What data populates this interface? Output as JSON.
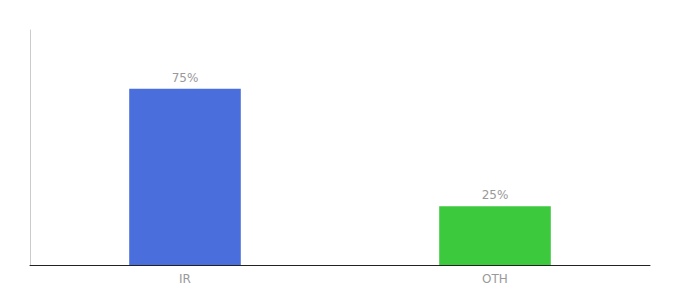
{
  "chart_data": {
    "type": "bar",
    "categories": [
      "IR",
      "OTH"
    ],
    "values": [
      75,
      25
    ],
    "value_labels": [
      "75%",
      "25%"
    ],
    "colors": [
      "#4a6fdc",
      "#3dc93d"
    ],
    "ylim": [
      0,
      100
    ],
    "grid": false,
    "data_labels": true,
    "tick_labels": "x"
  }
}
